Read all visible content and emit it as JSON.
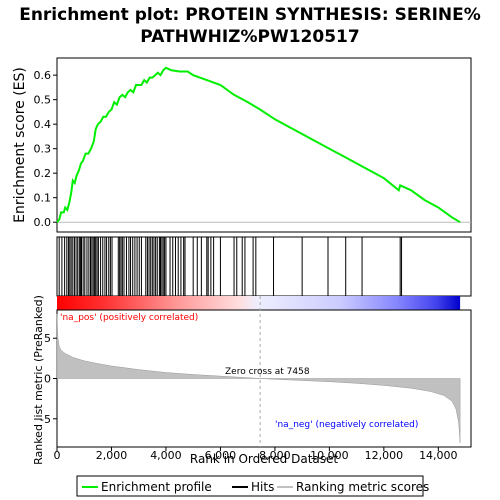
{
  "title_line1": "Enrichment plot: PROTEIN SYNTHESIS: SERINE%",
  "title_line2": "PATHWHIZ%PW120517",
  "colors": {
    "es_line": "#00ee00",
    "hits": "#000000",
    "metric_fill": "#c0c0c0",
    "pos_label": "#ff0000",
    "neg_label": "#0000ff",
    "zero_line": "#aaaaaa"
  },
  "chart_data": {
    "type": "line",
    "xlabel": "Rank in Ordered Dataset",
    "ylabel_es": "Enrichment score (ES)",
    "ylabel_metric": "Ranked list metric (PreRanked)",
    "xlim": [
      0,
      15200
    ],
    "x_ticks": [
      0,
      2000,
      4000,
      6000,
      8000,
      10000,
      12000,
      14000
    ],
    "x_tick_labels": [
      "0",
      "2,000",
      "4,000",
      "6,000",
      "8,000",
      "10,000",
      "12,000",
      "14,000"
    ],
    "es_ylim": [
      -0.04,
      0.67
    ],
    "es_ticks": [
      0.0,
      0.1,
      0.2,
      0.3,
      0.4,
      0.5,
      0.6
    ],
    "es_tick_labels": [
      "0.0",
      "0.1",
      "0.2",
      "0.3",
      "0.4",
      "0.5",
      "0.6"
    ],
    "metric_ylim": [
      -8.5,
      8.5
    ],
    "metric_ticks": [
      5,
      0,
      -5
    ],
    "metric_tick_labels": [
      "5",
      "0",
      "-5"
    ],
    "es_profile": [
      [
        0,
        0.0
      ],
      [
        80,
        0.01
      ],
      [
        150,
        0.04
      ],
      [
        250,
        0.04
      ],
      [
        300,
        0.06
      ],
      [
        380,
        0.05
      ],
      [
        450,
        0.08
      ],
      [
        520,
        0.12
      ],
      [
        580,
        0.17
      ],
      [
        650,
        0.16
      ],
      [
        720,
        0.19
      ],
      [
        800,
        0.21
      ],
      [
        880,
        0.24
      ],
      [
        950,
        0.25
      ],
      [
        1050,
        0.28
      ],
      [
        1150,
        0.28
      ],
      [
        1250,
        0.3
      ],
      [
        1350,
        0.33
      ],
      [
        1420,
        0.38
      ],
      [
        1500,
        0.4
      ],
      [
        1600,
        0.41
      ],
      [
        1700,
        0.43
      ],
      [
        1800,
        0.43
      ],
      [
        1900,
        0.45
      ],
      [
        2000,
        0.46
      ],
      [
        2100,
        0.49
      ],
      [
        2200,
        0.48
      ],
      [
        2300,
        0.51
      ],
      [
        2400,
        0.52
      ],
      [
        2500,
        0.51
      ],
      [
        2600,
        0.53
      ],
      [
        2700,
        0.54
      ],
      [
        2800,
        0.53
      ],
      [
        2900,
        0.56
      ],
      [
        3000,
        0.56
      ],
      [
        3100,
        0.56
      ],
      [
        3200,
        0.58
      ],
      [
        3300,
        0.57
      ],
      [
        3400,
        0.59
      ],
      [
        3500,
        0.59
      ],
      [
        3600,
        0.6
      ],
      [
        3700,
        0.61
      ],
      [
        3800,
        0.6
      ],
      [
        3900,
        0.62
      ],
      [
        4000,
        0.63
      ],
      [
        4200,
        0.62
      ],
      [
        4500,
        0.615
      ],
      [
        4800,
        0.615
      ],
      [
        5000,
        0.6
      ],
      [
        5500,
        0.58
      ],
      [
        6000,
        0.56
      ],
      [
        6500,
        0.52
      ],
      [
        7000,
        0.49
      ],
      [
        7458,
        0.46
      ],
      [
        8000,
        0.42
      ],
      [
        9000,
        0.36
      ],
      [
        10000,
        0.3
      ],
      [
        10500,
        0.27
      ],
      [
        11000,
        0.24
      ],
      [
        11500,
        0.21
      ],
      [
        12000,
        0.18
      ],
      [
        12550,
        0.13
      ],
      [
        12600,
        0.15
      ],
      [
        13000,
        0.13
      ],
      [
        13500,
        0.09
      ],
      [
        14000,
        0.06
      ],
      [
        14500,
        0.02
      ],
      [
        14800,
        0.0
      ]
    ],
    "hit_ranks": [
      80,
      180,
      280,
      360,
      420,
      470,
      520,
      580,
      640,
      700,
      760,
      820,
      860,
      900,
      960,
      1020,
      1100,
      1170,
      1230,
      1280,
      1330,
      1380,
      1420,
      1470,
      1520,
      1600,
      1680,
      1760,
      1820,
      1900,
      1960,
      2020,
      2250,
      2300,
      2350,
      2400,
      2460,
      2550,
      2640,
      2700,
      2780,
      2860,
      2940,
      3020,
      3100,
      3260,
      3320,
      3380,
      3440,
      3500,
      3560,
      3620,
      3680,
      3760,
      3800,
      3850,
      3900,
      3950,
      4000,
      4150,
      4250,
      4350,
      4450,
      4550,
      4650,
      4700,
      5000,
      5150,
      5300,
      5500,
      5550,
      5650,
      5750,
      6000,
      6500,
      6600,
      6800,
      6900,
      7200,
      7300,
      7950,
      9000,
      9950,
      10600,
      11200,
      12600,
      12650
    ],
    "metric_profile": [
      [
        0,
        8.0
      ],
      [
        30,
        5.2
      ],
      [
        80,
        4.0
      ],
      [
        150,
        3.5
      ],
      [
        300,
        3.1
      ],
      [
        600,
        2.6
      ],
      [
        1000,
        2.2
      ],
      [
        1500,
        1.85
      ],
      [
        2000,
        1.55
      ],
      [
        3000,
        1.1
      ],
      [
        4000,
        0.75
      ],
      [
        5000,
        0.5
      ],
      [
        6000,
        0.3
      ],
      [
        7000,
        0.1
      ],
      [
        7458,
        0.0
      ],
      [
        8000,
        -0.1
      ],
      [
        9000,
        -0.25
      ],
      [
        10000,
        -0.4
      ],
      [
        11000,
        -0.6
      ],
      [
        12000,
        -0.85
      ],
      [
        13000,
        -1.2
      ],
      [
        13700,
        -1.6
      ],
      [
        14200,
        -2.1
      ],
      [
        14500,
        -2.8
      ],
      [
        14650,
        -3.8
      ],
      [
        14750,
        -5.5
      ],
      [
        14800,
        -8.0
      ]
    ],
    "zero_cross_rank": 7458,
    "annotations": {
      "pos": "'na_pos' (positively correlated)",
      "neg": "'na_neg' (negatively correlated)",
      "zero_cross": "Zero cross at 7458"
    },
    "legend": [
      "Enrichment profile",
      "Hits",
      "Ranking metric scores"
    ],
    "legend_position": "bottom"
  }
}
